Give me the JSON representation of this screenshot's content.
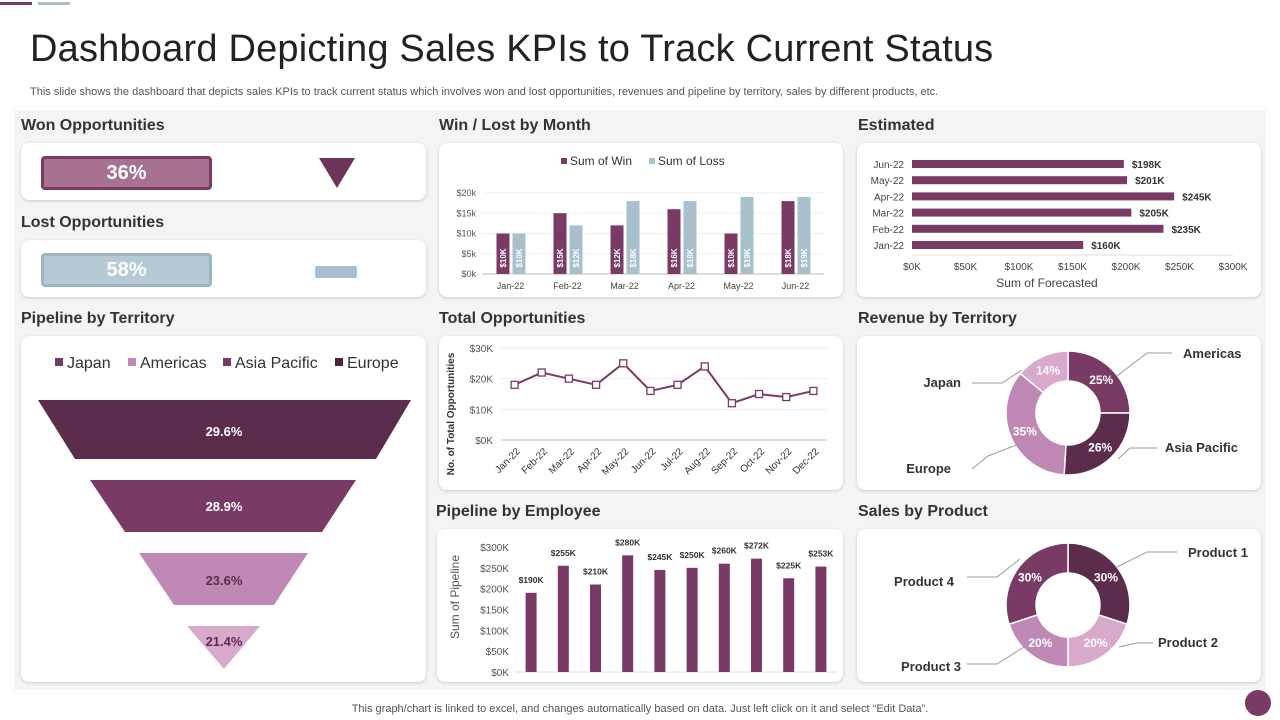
{
  "header": {
    "title": "Dashboard Depicting Sales KPIs to Track Current Status",
    "subtitle": "This slide shows the dashboard that depicts sales KPIs to track current status which involves won and lost opportunities, revenues and pipeline by territory, sales by different products, etc."
  },
  "footer": {
    "note": "This graph/chart is linked to excel, and changes automatically based on data. Just left click on it and select “Edit Data”."
  },
  "colors": {
    "dark": "#5c2c4c",
    "mid": "#7a3a66",
    "pink": "#c088b4",
    "lightpink": "#d9a9cc",
    "blue": "#a8c0cc",
    "win": "#7a3a66",
    "loss": "#a8c0cc"
  },
  "sections": {
    "won": "Won Opportunities",
    "lost": "Lost Opportunities",
    "winloss": "Win / Lost  by Month",
    "estimated": "Estimated",
    "pipeline_territory": "Pipeline by Territory",
    "total_opps": "Total Opportunities",
    "revenue_territory": "Revenue by Territory",
    "pipeline_employee": "Pipeline by Employee",
    "sales_product": "Sales by Product"
  },
  "kpi": {
    "won": {
      "value": "36%",
      "fraction": 0.36,
      "icon": "triangle-down-icon"
    },
    "lost": {
      "value": "58%",
      "fraction": 0.58,
      "icon": "bar-icon"
    }
  },
  "chart_data": [
    {
      "id": "winloss",
      "type": "bar",
      "legend": [
        "Sum of Win",
        "Sum of Loss"
      ],
      "categories": [
        "Jan-22",
        "Feb-22",
        "Mar-22",
        "Apr-22",
        "May-22",
        "Jun-22"
      ],
      "series": [
        {
          "name": "Sum of Win",
          "values": [
            10,
            15,
            12,
            16,
            10,
            18
          ],
          "labels": [
            "$10K",
            "$15K",
            "$12K",
            "$16K",
            "$10K",
            "$18K"
          ]
        },
        {
          "name": "Sum of Loss",
          "values": [
            10,
            12,
            18,
            18,
            19,
            19
          ],
          "labels": [
            "$10K",
            "$12K",
            "$18K",
            "$18K",
            "$19K",
            "$19K"
          ]
        }
      ],
      "yticks": [
        "$0k",
        "$5k",
        "$10k",
        "$15k",
        "$20k"
      ],
      "ylim": [
        0,
        20
      ]
    },
    {
      "id": "estimated",
      "type": "bar",
      "orientation": "horizontal",
      "categories": [
        "Jun-22",
        "May-22",
        "Apr-22",
        "Mar-22",
        "Feb-22",
        "Jan-22"
      ],
      "values": [
        198,
        201,
        245,
        205,
        235,
        160
      ],
      "labels": [
        "$198K",
        "$201K",
        "$245K",
        "$205K",
        "$235K",
        "$160K"
      ],
      "xticks": [
        "$0K",
        "$50K",
        "$100K",
        "$150K",
        "$200K",
        "$250K",
        "$300K"
      ],
      "xlim": [
        0,
        300
      ],
      "xlabel": "Sum of Forecasted"
    },
    {
      "id": "pipeline_territory",
      "type": "funnel",
      "legend": [
        "Japan",
        "Americas",
        "Asia Pacific",
        "Europe"
      ],
      "values": [
        29.6,
        28.9,
        23.6,
        21.4
      ],
      "labels": [
        "29.6%",
        "28.9%",
        "23.6%",
        "21.4%"
      ]
    },
    {
      "id": "total_opps",
      "type": "line",
      "categories": [
        "Jan-22",
        "Feb-22",
        "Mar-22",
        "Apr-22",
        "May-22",
        "Jun-22",
        "Jul-22",
        "Aug-22",
        "Sep-22",
        "Oct-22",
        "Nov-22",
        "Dec-22"
      ],
      "values": [
        18,
        22,
        20,
        18,
        25,
        16,
        18,
        24,
        12,
        15,
        14,
        16
      ],
      "yticks": [
        "$0K",
        "$10K",
        "$20K",
        "$30K"
      ],
      "ylim": [
        0,
        30
      ],
      "ylabel": "No. of Total Opportunities"
    },
    {
      "id": "revenue_territory",
      "type": "pie",
      "categories": [
        "Americas",
        "Asia Pacific",
        "Europe",
        "Japan"
      ],
      "values": [
        25,
        26,
        35,
        14
      ],
      "labels": [
        "25%",
        "26%",
        "35%",
        "14%"
      ]
    },
    {
      "id": "pipeline_employee",
      "type": "bar",
      "values": [
        190,
        255,
        210,
        280,
        245,
        250,
        260,
        272,
        225,
        253
      ],
      "labels": [
        "$190K",
        "$255K",
        "$210K",
        "$280K",
        "$245K",
        "$250K",
        "$260K",
        "$272K",
        "$225K",
        "$253K"
      ],
      "yticks": [
        "$0K",
        "$50K",
        "$100K",
        "$150K",
        "$200K",
        "$250K",
        "$300K"
      ],
      "ylim": [
        0,
        300
      ],
      "ylabel": "Sum of Pipeline"
    },
    {
      "id": "sales_product",
      "type": "pie",
      "categories": [
        "Product 1",
        "Product 2",
        "Product 3",
        "Product 4"
      ],
      "values": [
        30,
        20,
        20,
        30
      ],
      "labels": [
        "30%",
        "20%",
        "20%",
        "30%"
      ]
    }
  ]
}
